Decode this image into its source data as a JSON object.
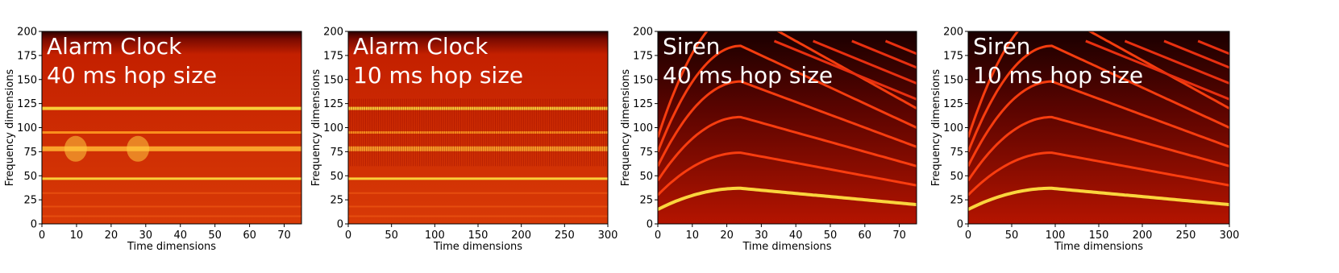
{
  "chart_data": [
    {
      "type": "heatmap",
      "annotation": [
        "Alarm Clock",
        "40 ms hop size"
      ],
      "xlabel": "Time dimensions",
      "ylabel": "Frequency dimensions",
      "xlim": [
        0,
        75
      ],
      "xticks": [
        0,
        10,
        20,
        30,
        40,
        50,
        60,
        70
      ],
      "ylim": [
        0,
        200
      ],
      "yticks": [
        0,
        25,
        50,
        75,
        100,
        125,
        150,
        175,
        200
      ]
    },
    {
      "type": "heatmap",
      "annotation": [
        "Alarm Clock",
        "10 ms hop size"
      ],
      "xlabel": "Time dimensions",
      "ylabel": "Frequency dimensions",
      "xlim": [
        0,
        300
      ],
      "xticks": [
        0,
        50,
        100,
        150,
        200,
        250,
        300
      ],
      "ylim": [
        0,
        200
      ],
      "yticks": [
        0,
        25,
        50,
        75,
        100,
        125,
        150,
        175,
        200
      ]
    },
    {
      "type": "heatmap",
      "annotation": [
        "Siren",
        "40 ms hop size"
      ],
      "xlabel": "Time dimensions",
      "ylabel": "Frequency dimensions",
      "xlim": [
        0,
        75
      ],
      "xticks": [
        0,
        10,
        20,
        30,
        40,
        50,
        60,
        70
      ],
      "ylim": [
        0,
        200
      ],
      "yticks": [
        0,
        25,
        50,
        75,
        100,
        125,
        150,
        175,
        200
      ]
    },
    {
      "type": "heatmap",
      "annotation": [
        "Siren",
        "10 ms hop size"
      ],
      "xlabel": "Time dimensions",
      "ylabel": "Frequency dimensions",
      "xlim": [
        0,
        300
      ],
      "xticks": [
        0,
        50,
        100,
        150,
        200,
        250,
        300
      ],
      "ylim": [
        0,
        200
      ],
      "yticks": [
        0,
        25,
        50,
        75,
        100,
        125,
        150,
        175,
        200
      ]
    }
  ]
}
